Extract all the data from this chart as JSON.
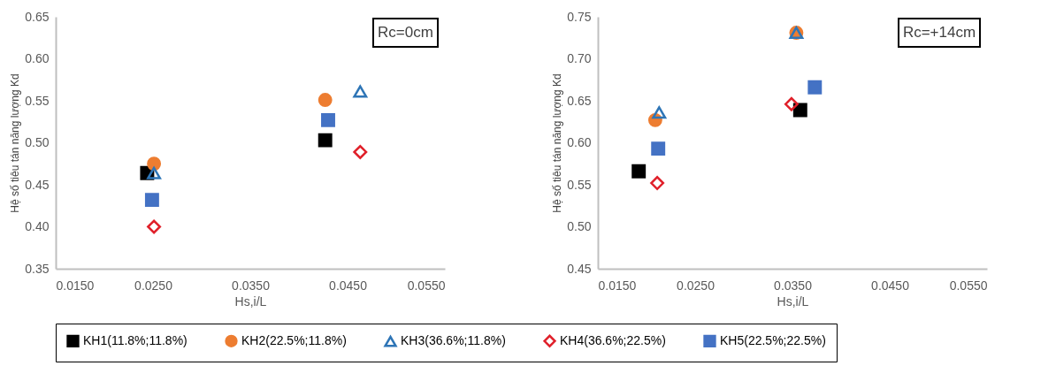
{
  "chart_data": [
    {
      "type": "scatter",
      "xlabel": "Hs,i/L",
      "ylabel": "Hệ số tiêu tán năng lượng Kd",
      "annotations": [
        "Rc=0cm"
      ],
      "xlim": [
        0.015,
        0.055
      ],
      "xticks": [
        {
          "value": 0.015,
          "label": "0.0150"
        },
        {
          "value": 0.025,
          "label": "0.0250"
        },
        {
          "value": 0.035,
          "label": "0.0350"
        },
        {
          "value": 0.045,
          "label": "0.0450"
        },
        {
          "value": 0.055,
          "label": "0.0550"
        }
      ],
      "ylim": [
        0.35,
        0.65
      ],
      "yticks": [
        {
          "value": 0.35,
          "label": "0.35"
        },
        {
          "value": 0.4,
          "label": "0.40"
        },
        {
          "value": 0.45,
          "label": "0.45"
        },
        {
          "value": 0.5,
          "label": "0.50"
        },
        {
          "value": 0.55,
          "label": "0.55"
        },
        {
          "value": 0.6,
          "label": "0.60"
        },
        {
          "value": 0.65,
          "label": "0.65"
        }
      ],
      "grid": false,
      "legend": "bottom",
      "series": [
        {
          "name": "KH1(11.8%;11.8%)",
          "color": "#000000",
          "marker": "square",
          "x": [
            0.0244,
            0.0427
          ],
          "values": [
            0.464,
            0.503
          ]
        },
        {
          "name": "KH2(22.5%;11.8%)",
          "color": "#ed7d31",
          "marker": "circle",
          "x": [
            0.0251,
            0.0427
          ],
          "values": [
            0.475,
            0.551
          ]
        },
        {
          "name": "KH3(36.6%;11.8%)",
          "color": "#2e75b6",
          "marker": "triangle",
          "x": [
            0.0251,
            0.0463
          ],
          "values": [
            0.464,
            0.561
          ]
        },
        {
          "name": "KH4(36.6%;22.5%)",
          "color": "#e0202a",
          "marker": "diamond",
          "x": [
            0.0251,
            0.0463
          ],
          "values": [
            0.4,
            0.489
          ]
        },
        {
          "name": "KH5(22.5%;22.5%)",
          "color": "#4472c4",
          "marker": "square",
          "x": [
            0.0249,
            0.043
          ],
          "values": [
            0.432,
            0.527
          ]
        }
      ]
    },
    {
      "type": "scatter",
      "xlabel": "Hs,i/L",
      "ylabel": "Hệ số tiêu tán năng lượng Kd",
      "annotations": [
        "Rc=+14cm"
      ],
      "xlim": [
        0.015,
        0.055
      ],
      "xticks": [
        {
          "value": 0.015,
          "label": "0.0150"
        },
        {
          "value": 0.025,
          "label": "0.0250"
        },
        {
          "value": 0.035,
          "label": "0.0350"
        },
        {
          "value": 0.045,
          "label": "0.0450"
        },
        {
          "value": 0.055,
          "label": "0.0550"
        }
      ],
      "ylim": [
        0.45,
        0.75
      ],
      "yticks": [
        {
          "value": 0.45,
          "label": "0.45"
        },
        {
          "value": 0.5,
          "label": "0.50"
        },
        {
          "value": 0.55,
          "label": "0.55"
        },
        {
          "value": 0.6,
          "label": "0.60"
        },
        {
          "value": 0.65,
          "label": "0.65"
        },
        {
          "value": 0.7,
          "label": "0.70"
        },
        {
          "value": 0.75,
          "label": "0.75"
        }
      ],
      "grid": false,
      "legend": "bottom",
      "series": [
        {
          "name": "KH1(11.8%;11.8%)",
          "color": "#000000",
          "marker": "square",
          "x": [
            0.0192,
            0.0358
          ],
          "values": [
            0.566,
            0.639
          ]
        },
        {
          "name": "KH2(22.5%;11.8%)",
          "color": "#ed7d31",
          "marker": "circle",
          "x": [
            0.0209,
            0.0354
          ],
          "values": [
            0.627,
            0.731
          ]
        },
        {
          "name": "KH3(36.6%;11.8%)",
          "color": "#2e75b6",
          "marker": "triangle",
          "x": [
            0.0213,
            0.0354
          ],
          "values": [
            0.636,
            0.731
          ]
        },
        {
          "name": "KH4(36.6%;22.5%)",
          "color": "#e0202a",
          "marker": "diamond",
          "x": [
            0.0211,
            0.0349
          ],
          "values": [
            0.552,
            0.646
          ]
        },
        {
          "name": "KH5(22.5%;22.5%)",
          "color": "#4472c4",
          "marker": "square",
          "x": [
            0.0212,
            0.0373
          ],
          "values": [
            0.593,
            0.666
          ]
        }
      ]
    }
  ]
}
